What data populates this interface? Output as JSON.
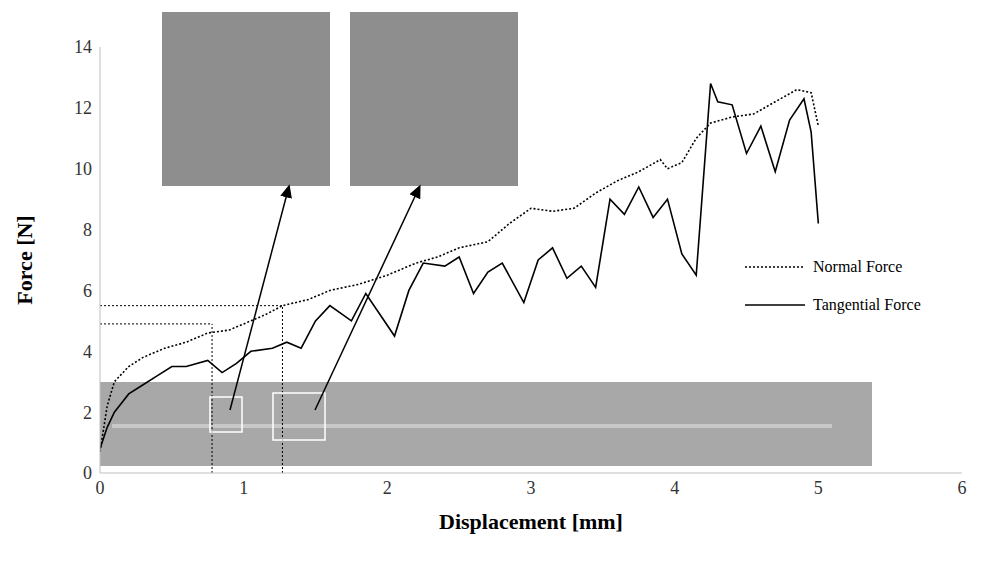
{
  "chart_data": {
    "type": "line",
    "x_label": "Displacement [mm]",
    "y_label": "Force [N]",
    "xlim": [
      0,
      6
    ],
    "xticks": [
      0,
      1,
      2,
      3,
      4,
      5,
      6
    ],
    "ylim": [
      0,
      14
    ],
    "yticks": [
      0,
      2,
      4,
      6,
      8,
      10,
      12,
      14
    ],
    "grid": false,
    "legend": "right",
    "series": [
      {
        "name": "Normal Force",
        "color": "#000000",
        "line_style": "dotted",
        "x": [
          0,
          0.05,
          0.1,
          0.2,
          0.3,
          0.45,
          0.6,
          0.75,
          0.9,
          1.0,
          1.15,
          1.27,
          1.45,
          1.6,
          1.8,
          2.0,
          2.2,
          2.35,
          2.5,
          2.7,
          2.85,
          3.0,
          3.15,
          3.3,
          3.45,
          3.6,
          3.75,
          3.9,
          3.95,
          4.05,
          4.15,
          4.25,
          4.4,
          4.55,
          4.7,
          4.85,
          4.95,
          5.0
        ],
        "values": [
          0.7,
          2.2,
          3.0,
          3.5,
          3.8,
          4.1,
          4.3,
          4.6,
          4.7,
          4.9,
          5.2,
          5.5,
          5.7,
          6.0,
          6.2,
          6.5,
          6.9,
          7.1,
          7.4,
          7.6,
          8.2,
          8.7,
          8.6,
          8.7,
          9.2,
          9.6,
          9.9,
          10.3,
          10.0,
          10.2,
          11.0,
          11.5,
          11.7,
          11.8,
          12.2,
          12.6,
          12.5,
          11.4
        ]
      },
      {
        "name": "Tangential Force",
        "color": "#000000",
        "line_style": "solid",
        "x": [
          0,
          0.05,
          0.1,
          0.2,
          0.3,
          0.4,
          0.5,
          0.6,
          0.75,
          0.85,
          0.95,
          1.05,
          1.2,
          1.3,
          1.4,
          1.5,
          1.6,
          1.75,
          1.85,
          1.95,
          2.05,
          2.15,
          2.25,
          2.4,
          2.5,
          2.6,
          2.7,
          2.8,
          2.95,
          3.05,
          3.15,
          3.25,
          3.35,
          3.45,
          3.55,
          3.65,
          3.75,
          3.85,
          3.95,
          4.05,
          4.15,
          4.25,
          4.3,
          4.4,
          4.5,
          4.6,
          4.7,
          4.8,
          4.9,
          4.95,
          5.0
        ],
        "values": [
          0.8,
          1.5,
          2.0,
          2.6,
          2.9,
          3.2,
          3.5,
          3.5,
          3.7,
          3.3,
          3.6,
          4.0,
          4.1,
          4.3,
          4.1,
          5.0,
          5.5,
          5.0,
          5.9,
          5.2,
          4.5,
          6.0,
          6.9,
          6.8,
          7.1,
          5.9,
          6.6,
          6.9,
          5.6,
          7.0,
          7.4,
          6.4,
          6.8,
          6.1,
          9.0,
          8.5,
          9.4,
          8.4,
          9.0,
          7.2,
          6.5,
          12.8,
          12.2,
          12.1,
          10.5,
          11.4,
          9.9,
          11.6,
          12.3,
          11.2,
          8.2
        ]
      }
    ],
    "reference_points": [
      {
        "x": 0.78,
        "y": 4.9
      },
      {
        "x": 1.27,
        "y": 5.5
      }
    ]
  }
}
